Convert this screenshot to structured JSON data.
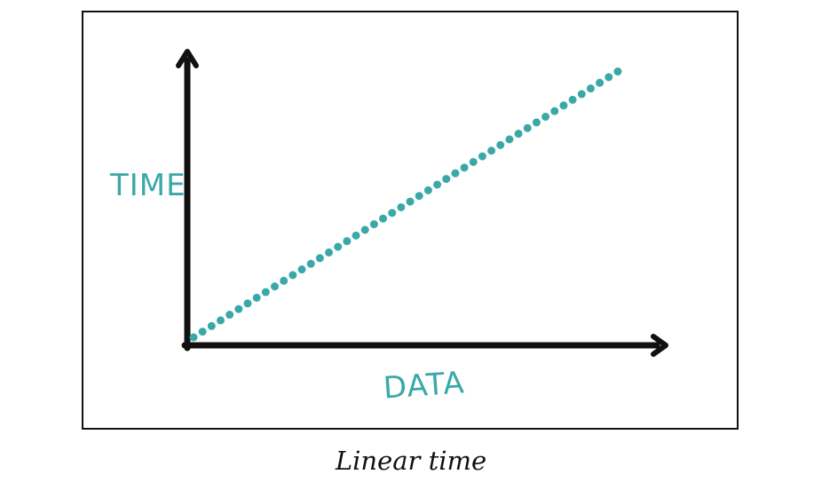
{
  "diagram": {
    "y_axis_label": "TIME",
    "x_axis_label": "DATA",
    "caption": "Linear time",
    "colors": {
      "axis": "#111111",
      "accent": "#3aa8a8",
      "frame": "#111111"
    },
    "line_type": "dotted-linear"
  }
}
